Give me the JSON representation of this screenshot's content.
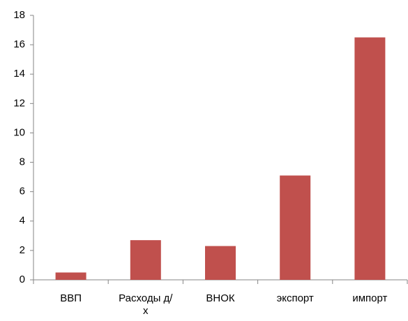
{
  "chart_data": {
    "type": "bar",
    "categories": [
      "ВВП",
      "Расходы д/х",
      "ВНОК",
      "экспорт",
      "импорт"
    ],
    "values": [
      0.5,
      2.7,
      2.3,
      7.1,
      16.5
    ],
    "color": "#c0504d",
    "ylim": [
      0,
      18
    ],
    "yticks": [
      0,
      2,
      4,
      6,
      8,
      10,
      12,
      14,
      16,
      18
    ],
    "grid": false
  }
}
